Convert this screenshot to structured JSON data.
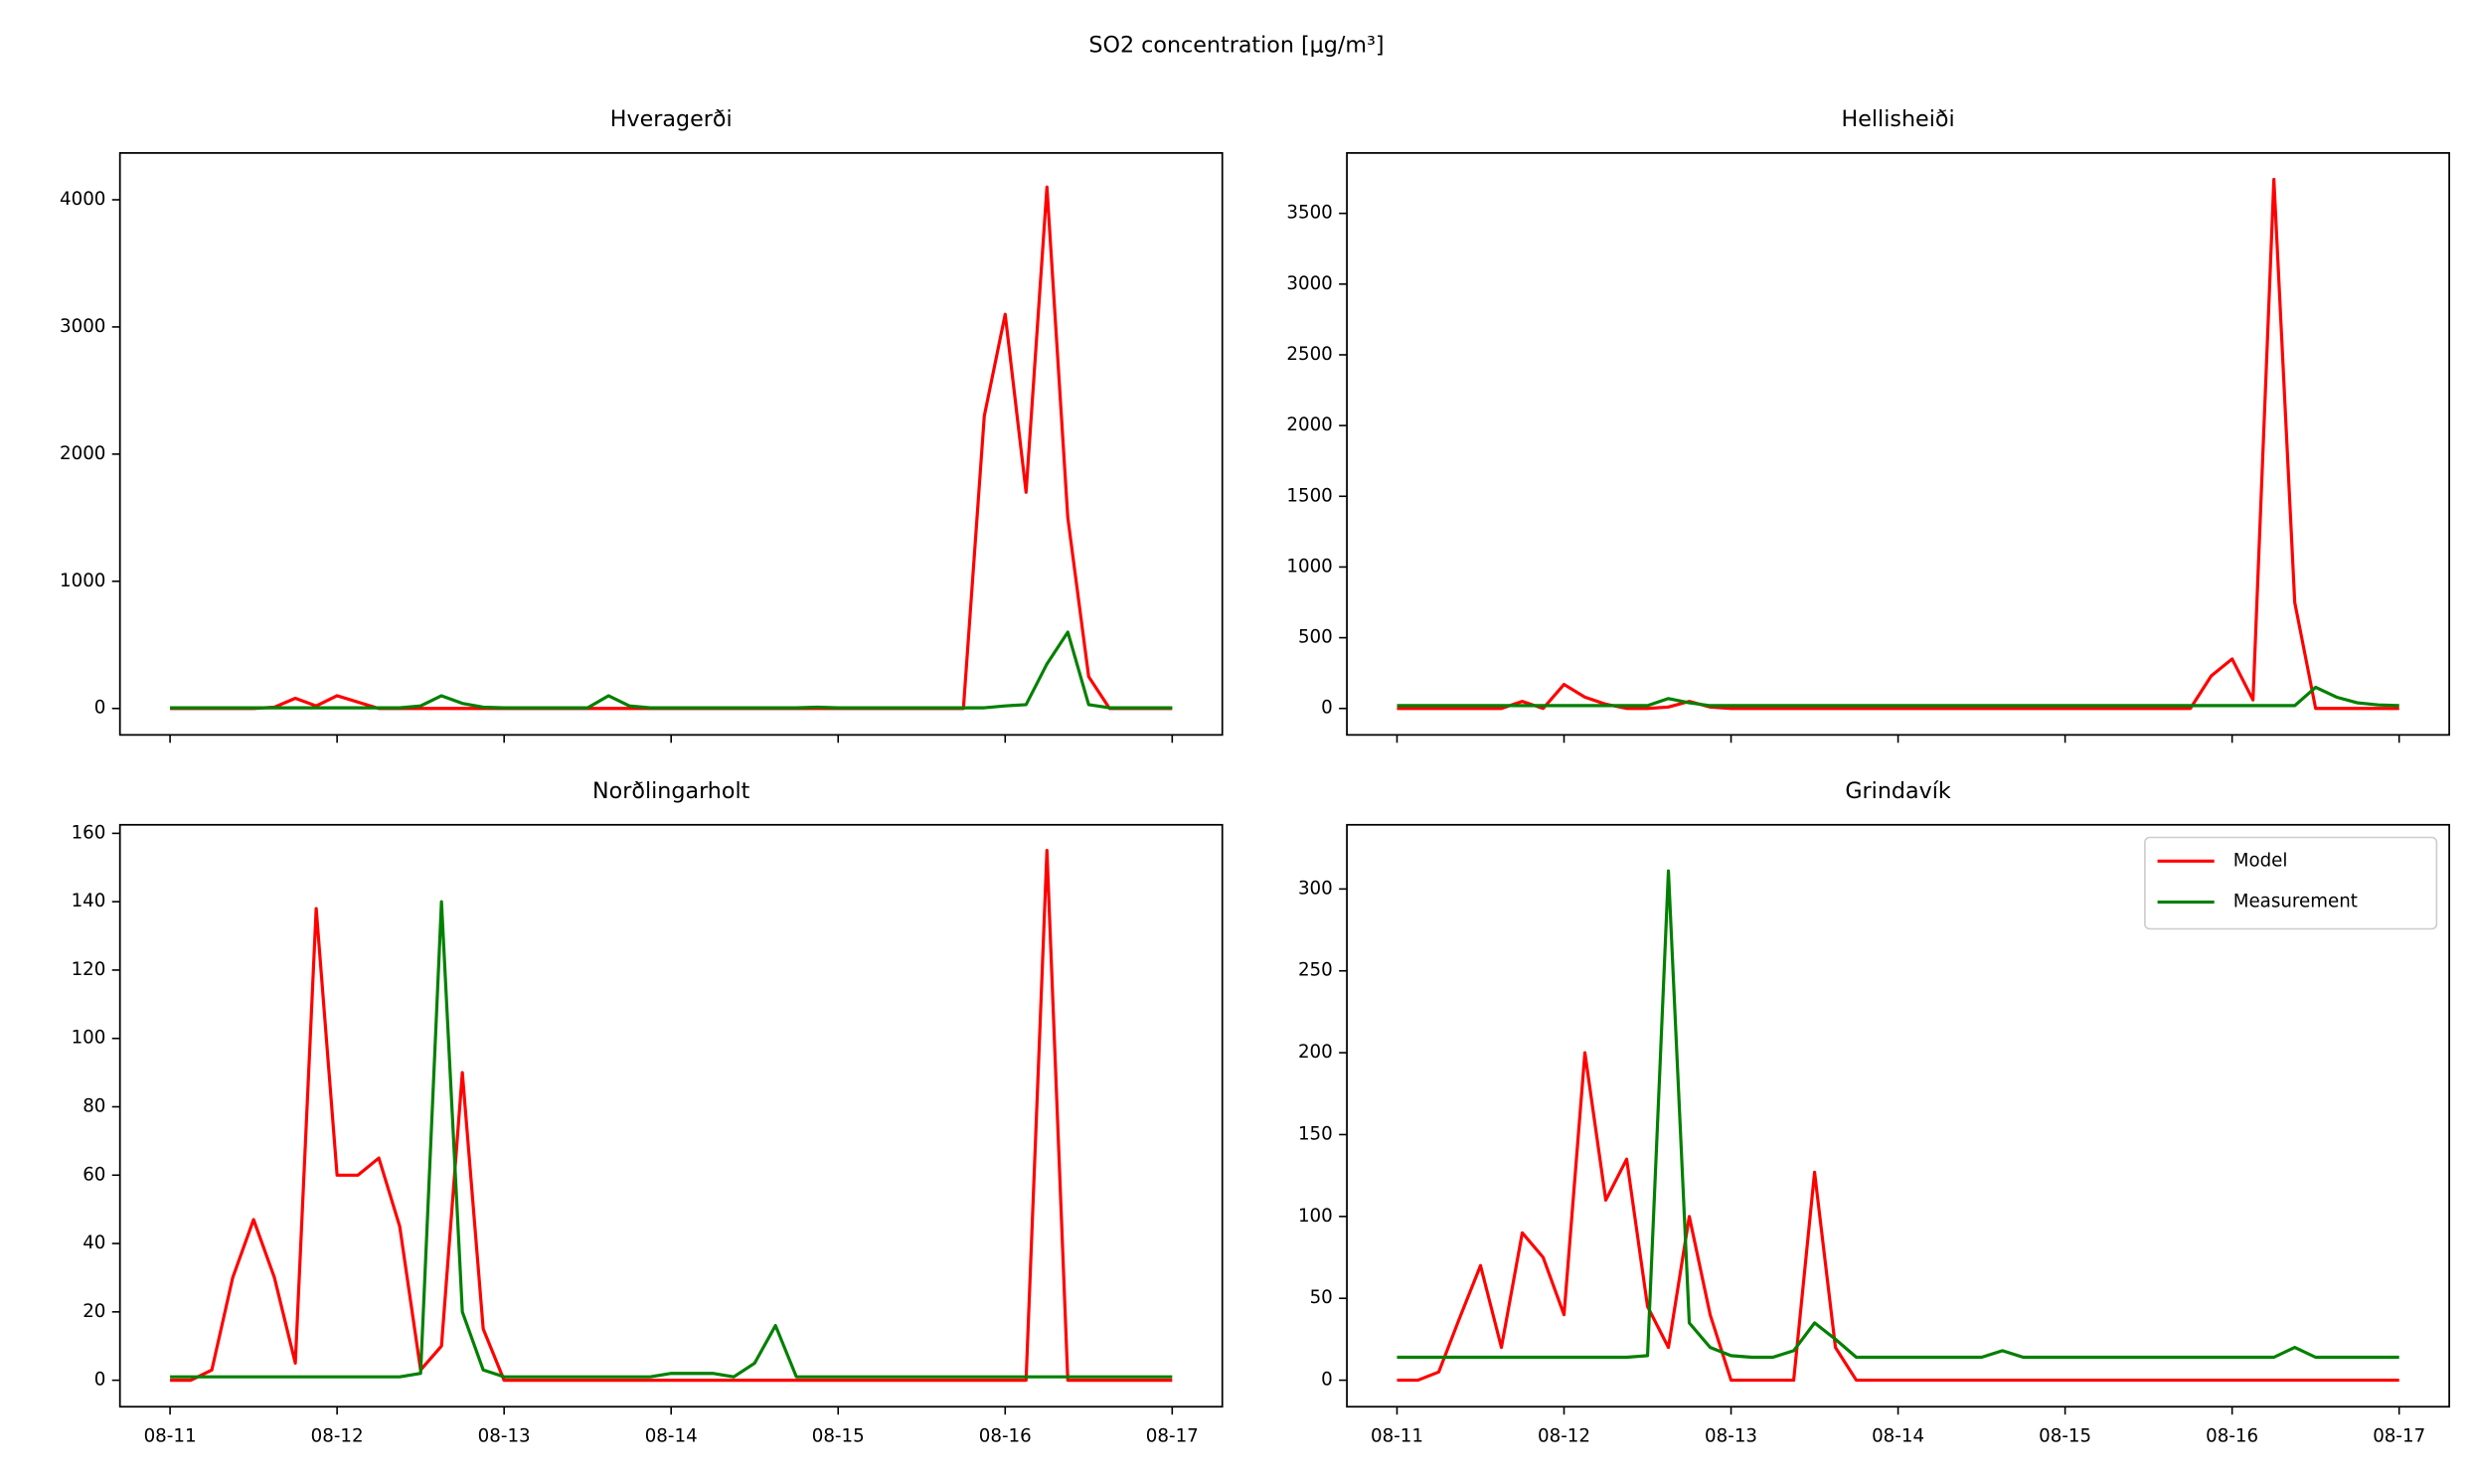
{
  "title": "SO2 concentration [μg/m³]",
  "chart_data": [
    {
      "type": "line",
      "title": "Hveragerði",
      "x": [
        0,
        3,
        6,
        9,
        12,
        15,
        18,
        21,
        24,
        27,
        30,
        33,
        36,
        39,
        42,
        45,
        48,
        51,
        54,
        57,
        60,
        63,
        66,
        69,
        72,
        75,
        78,
        81,
        84,
        87,
        90,
        93,
        96,
        99,
        102,
        105,
        108,
        111,
        114,
        117,
        120,
        123,
        126,
        129,
        132,
        135,
        138,
        141,
        144
      ],
      "series": [
        {
          "name": "Model",
          "color": "#ff0000",
          "values": [
            0,
            0,
            0,
            0,
            0,
            10,
            80,
            20,
            100,
            50,
            0,
            0,
            0,
            0,
            0,
            0,
            0,
            0,
            0,
            0,
            0,
            0,
            0,
            0,
            0,
            0,
            0,
            0,
            0,
            0,
            0,
            0,
            0,
            0,
            0,
            0,
            0,
            0,
            0,
            2300,
            3100,
            1700,
            4100,
            1500,
            250,
            0,
            0,
            0,
            0
          ]
        },
        {
          "name": "Measurement",
          "color": "#008000",
          "values": [
            5,
            5,
            5,
            5,
            5,
            5,
            5,
            5,
            5,
            5,
            5,
            5,
            20,
            100,
            40,
            10,
            5,
            5,
            5,
            5,
            5,
            100,
            20,
            5,
            5,
            5,
            5,
            5,
            5,
            5,
            5,
            10,
            5,
            5,
            5,
            5,
            5,
            5,
            5,
            5,
            20,
            30,
            350,
            600,
            30,
            5,
            5,
            5,
            5
          ]
        }
      ],
      "xlim": [
        -7.2,
        151.2
      ],
      "xticks": [
        0,
        24,
        48,
        72,
        96,
        120,
        144
      ],
      "ylim": [
        -208,
        4368
      ],
      "yticks": [
        0,
        1000,
        2000,
        3000,
        4000
      ]
    },
    {
      "type": "line",
      "title": "Hellisheiði",
      "x": [
        0,
        3,
        6,
        9,
        12,
        15,
        18,
        21,
        24,
        27,
        30,
        33,
        36,
        39,
        42,
        45,
        48,
        51,
        54,
        57,
        60,
        63,
        66,
        69,
        72,
        75,
        78,
        81,
        84,
        87,
        90,
        93,
        96,
        99,
        102,
        105,
        108,
        111,
        114,
        117,
        120,
        123,
        126,
        129,
        132,
        135,
        138,
        141,
        144
      ],
      "series": [
        {
          "name": "Model",
          "color": "#ff0000",
          "values": [
            0,
            0,
            0,
            0,
            0,
            0,
            50,
            0,
            170,
            80,
            30,
            0,
            0,
            10,
            50,
            10,
            0,
            0,
            0,
            0,
            0,
            0,
            0,
            0,
            0,
            0,
            0,
            0,
            0,
            0,
            0,
            0,
            0,
            0,
            0,
            0,
            0,
            0,
            0,
            230,
            350,
            60,
            3740,
            750,
            0,
            0,
            0,
            0,
            0
          ]
        },
        {
          "name": "Measurement",
          "color": "#008000",
          "values": [
            20,
            20,
            20,
            20,
            20,
            20,
            20,
            20,
            20,
            20,
            20,
            20,
            20,
            70,
            40,
            20,
            20,
            20,
            20,
            20,
            20,
            20,
            20,
            20,
            20,
            20,
            20,
            20,
            20,
            20,
            20,
            20,
            20,
            20,
            20,
            20,
            20,
            20,
            20,
            20,
            20,
            20,
            20,
            20,
            150,
            80,
            40,
            25,
            20
          ]
        }
      ],
      "xlim": [
        -7.2,
        151.2
      ],
      "xticks": [
        0,
        24,
        48,
        72,
        96,
        120,
        144
      ],
      "ylim": [
        -187,
        3927
      ],
      "yticks": [
        0,
        500,
        1000,
        1500,
        2000,
        2500,
        3000,
        3500
      ]
    },
    {
      "type": "line",
      "title": "Norðlingarholt",
      "x": [
        0,
        3,
        6,
        9,
        12,
        15,
        18,
        21,
        24,
        27,
        30,
        33,
        36,
        39,
        42,
        45,
        48,
        51,
        54,
        57,
        60,
        63,
        66,
        69,
        72,
        75,
        78,
        81,
        84,
        87,
        90,
        93,
        96,
        99,
        102,
        105,
        108,
        111,
        114,
        117,
        120,
        123,
        126,
        129,
        132,
        135,
        138,
        141,
        144
      ],
      "series": [
        {
          "name": "Model",
          "color": "#ff0000",
          "values": [
            0,
            0,
            3,
            30,
            47,
            30,
            5,
            138,
            60,
            60,
            65,
            45,
            3,
            10,
            90,
            15,
            0,
            0,
            0,
            0,
            0,
            0,
            0,
            0,
            0,
            0,
            0,
            0,
            0,
            0,
            0,
            0,
            0,
            0,
            0,
            0,
            0,
            0,
            0,
            0,
            0,
            0,
            155,
            0,
            0,
            0,
            0,
            0,
            0
          ]
        },
        {
          "name": "Measurement",
          "color": "#008000",
          "values": [
            1,
            1,
            1,
            1,
            1,
            1,
            1,
            1,
            1,
            1,
            1,
            1,
            2,
            140,
            20,
            3,
            1,
            1,
            1,
            1,
            1,
            1,
            1,
            1,
            2,
            2,
            2,
            1,
            5,
            16,
            1,
            1,
            1,
            1,
            1,
            1,
            1,
            1,
            1,
            1,
            1,
            1,
            1,
            1,
            1,
            1,
            1,
            1,
            1
          ]
        }
      ],
      "xlim": [
        -7.2,
        151.2
      ],
      "xticks": [
        {
          "value": 0,
          "label": "08-11"
        },
        {
          "value": 24,
          "label": "08-12"
        },
        {
          "value": 48,
          "label": "08-13"
        },
        {
          "value": 72,
          "label": "08-14"
        },
        {
          "value": 96,
          "label": "08-15"
        },
        {
          "value": 120,
          "label": "08-16"
        },
        {
          "value": 144,
          "label": "08-17"
        }
      ],
      "ylim": [
        -7.75,
        162.5
      ],
      "yticks": [
        0,
        20,
        40,
        60,
        80,
        100,
        120,
        140,
        160
      ]
    },
    {
      "type": "line",
      "title": "Grindavík",
      "x": [
        0,
        3,
        6,
        9,
        12,
        15,
        18,
        21,
        24,
        27,
        30,
        33,
        36,
        39,
        42,
        45,
        48,
        51,
        54,
        57,
        60,
        63,
        66,
        69,
        72,
        75,
        78,
        81,
        84,
        87,
        90,
        93,
        96,
        99,
        102,
        105,
        108,
        111,
        114,
        117,
        120,
        123,
        126,
        129,
        132,
        135,
        138,
        141,
        144
      ],
      "series": [
        {
          "name": "Model",
          "color": "#ff0000",
          "values": [
            0,
            0,
            5,
            38,
            70,
            20,
            90,
            75,
            40,
            200,
            110,
            135,
            45,
            20,
            100,
            40,
            0,
            0,
            0,
            0,
            127,
            20,
            0,
            0,
            0,
            0,
            0,
            0,
            0,
            0,
            0,
            0,
            0,
            0,
            0,
            0,
            0,
            0,
            0,
            0,
            0,
            0,
            0,
            0,
            0,
            0,
            0,
            0,
            0
          ]
        },
        {
          "name": "Measurement",
          "color": "#008000",
          "values": [
            14,
            14,
            14,
            14,
            14,
            14,
            14,
            14,
            14,
            14,
            14,
            14,
            15,
            311,
            35,
            20,
            15,
            14,
            14,
            18,
            35,
            25,
            14,
            14,
            14,
            14,
            14,
            14,
            14,
            18,
            14,
            14,
            14,
            14,
            14,
            14,
            14,
            14,
            14,
            14,
            14,
            14,
            14,
            20,
            14,
            14,
            14,
            14,
            14
          ]
        }
      ],
      "xlim": [
        -7.2,
        151.2
      ],
      "xticks": [
        {
          "value": 0,
          "label": "08-11"
        },
        {
          "value": 24,
          "label": "08-12"
        },
        {
          "value": 48,
          "label": "08-13"
        },
        {
          "value": 72,
          "label": "08-14"
        },
        {
          "value": 96,
          "label": "08-15"
        },
        {
          "value": 120,
          "label": "08-16"
        },
        {
          "value": 144,
          "label": "08-17"
        }
      ],
      "ylim": [
        -16.2,
        339.2
      ],
      "yticks": [
        0,
        50,
        100,
        150,
        200,
        250,
        300
      ],
      "legend": "upper right"
    }
  ]
}
